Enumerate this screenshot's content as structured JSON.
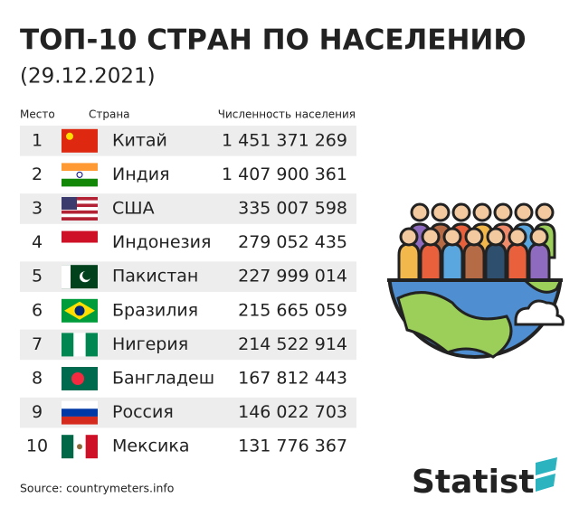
{
  "header": {
    "title": "ТОП-10 СТРАН ПО НАСЕЛЕНИЮ",
    "subtitle": "(29.12.2021)"
  },
  "table": {
    "columns": [
      "Место",
      "Страна",
      "Численность населения"
    ],
    "rows": [
      [
        1,
        "Китай",
        "1 451 371 269"
      ],
      [
        2,
        "Индия",
        "1 407 900 361"
      ],
      [
        3,
        "США",
        "335 007 598"
      ],
      [
        4,
        "Индонезия",
        "279 052 435"
      ],
      [
        5,
        "Пакистан",
        "227 999 014"
      ],
      [
        6,
        "Бразилия",
        "215 665 059"
      ],
      [
        7,
        "Нигерия",
        "214 522 914"
      ],
      [
        8,
        "Бангладеш",
        "167 812 443"
      ],
      [
        9,
        "Россия",
        "146 022 703"
      ],
      [
        10,
        "Мексика",
        "131 776 367"
      ]
    ]
  },
  "footer": {
    "source": "Source: countrymeters.info",
    "logo": "Statist"
  }
}
